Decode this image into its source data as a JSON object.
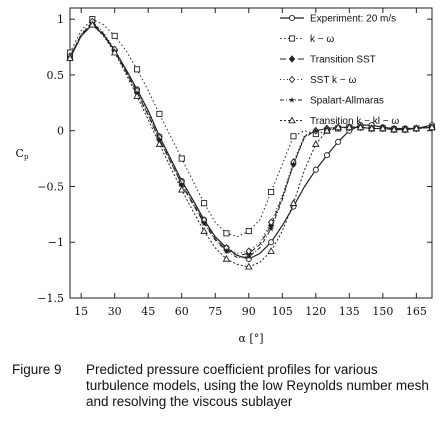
{
  "chart_data": {
    "type": "line",
    "xlabel": "α [°]",
    "ylabel": "Cp",
    "xlim": [
      10,
      172
    ],
    "ylim": [
      -1.5,
      1.1
    ],
    "x_ticks": [
      "15",
      "30",
      "45",
      "60",
      "75",
      "90",
      "105",
      "120",
      "135",
      "150",
      "165"
    ],
    "y_ticks": [
      "1",
      "0.5",
      "0",
      "−0.5",
      "−1",
      "−1.5"
    ],
    "grid": false,
    "legend_position": "top-right",
    "series": [
      {
        "name": "Experiment: 20 m/s",
        "marker": "circle",
        "x": [
          10,
          15,
          20,
          25,
          30,
          35,
          40,
          45,
          50,
          55,
          60,
          65,
          70,
          75,
          80,
          85,
          90,
          95,
          100,
          105,
          110,
          115,
          120,
          125,
          130,
          135,
          140,
          145,
          150,
          155,
          160,
          165,
          172
        ],
        "y": [
          0.65,
          0.85,
          0.95,
          0.86,
          0.72,
          0.55,
          0.37,
          0.18,
          -0.05,
          -0.25,
          -0.45,
          -0.62,
          -0.8,
          -0.95,
          -1.05,
          -1.12,
          -1.15,
          -1.1,
          -1.0,
          -0.85,
          -0.68,
          -0.5,
          -0.35,
          -0.22,
          -0.1,
          0.0,
          0.05,
          0.05,
          0.03,
          0.02,
          0.02,
          0.02,
          0.05
        ]
      },
      {
        "name": "k − ω",
        "marker": "square",
        "x": [
          10,
          15,
          20,
          25,
          30,
          35,
          40,
          45,
          50,
          55,
          60,
          65,
          70,
          75,
          80,
          85,
          90,
          95,
          100,
          105,
          110,
          115,
          120,
          125,
          130,
          135,
          140,
          145,
          150,
          155,
          160,
          165,
          172
        ],
        "y": [
          0.7,
          0.9,
          1.0,
          0.95,
          0.85,
          0.72,
          0.55,
          0.36,
          0.15,
          -0.05,
          -0.25,
          -0.45,
          -0.65,
          -0.82,
          -0.92,
          -0.95,
          -0.9,
          -0.8,
          -0.55,
          -0.3,
          -0.05,
          0.0,
          -0.03,
          0.0,
          0.02,
          0.03,
          0.03,
          0.02,
          0.02,
          0.01,
          0.01,
          0.02,
          0.03
        ]
      },
      {
        "name": "Transition SST",
        "marker": "diamond",
        "x": [
          10,
          15,
          20,
          25,
          30,
          35,
          40,
          45,
          50,
          55,
          60,
          65,
          70,
          75,
          80,
          85,
          90,
          95,
          100,
          105,
          110,
          115,
          120,
          125,
          130,
          135,
          140,
          145,
          150,
          155,
          160,
          165,
          172
        ],
        "y": [
          0.66,
          0.86,
          0.97,
          0.87,
          0.72,
          0.53,
          0.34,
          0.14,
          -0.08,
          -0.28,
          -0.48,
          -0.65,
          -0.82,
          -0.97,
          -1.07,
          -1.12,
          -1.1,
          -1.02,
          -0.85,
          -0.6,
          -0.3,
          -0.05,
          0.0,
          0.02,
          0.03,
          0.03,
          0.03,
          0.02,
          0.02,
          0.01,
          0.01,
          0.02,
          0.03
        ]
      },
      {
        "name": "SST k − ω",
        "marker": "open-diamond",
        "x": [
          10,
          15,
          20,
          25,
          30,
          35,
          40,
          45,
          50,
          55,
          60,
          65,
          70,
          75,
          80,
          85,
          90,
          95,
          100,
          105,
          110,
          115,
          120,
          125,
          130,
          135,
          140,
          145,
          150,
          155,
          160,
          165,
          172
        ],
        "y": [
          0.67,
          0.87,
          0.98,
          0.88,
          0.73,
          0.55,
          0.36,
          0.16,
          -0.06,
          -0.26,
          -0.46,
          -0.63,
          -0.8,
          -0.95,
          -1.05,
          -1.1,
          -1.08,
          -1.0,
          -0.82,
          -0.58,
          -0.28,
          -0.04,
          0.0,
          0.02,
          0.03,
          0.03,
          0.03,
          0.02,
          0.02,
          0.01,
          0.01,
          0.02,
          0.03
        ]
      },
      {
        "name": "Spalart-Allmaras",
        "marker": "star",
        "x": [
          10,
          15,
          20,
          25,
          30,
          35,
          40,
          45,
          50,
          55,
          60,
          65,
          70,
          75,
          80,
          85,
          90,
          95,
          100,
          105,
          110,
          115,
          120,
          125,
          130,
          135,
          140,
          145,
          150,
          155,
          160,
          165,
          172
        ],
        "y": [
          0.66,
          0.86,
          0.96,
          0.86,
          0.71,
          0.53,
          0.34,
          0.14,
          -0.08,
          -0.28,
          -0.48,
          -0.66,
          -0.83,
          -0.98,
          -1.08,
          -1.14,
          -1.13,
          -1.05,
          -0.88,
          -0.62,
          -0.3,
          -0.06,
          0.0,
          0.02,
          0.03,
          0.03,
          0.03,
          0.02,
          0.02,
          0.01,
          0.01,
          0.02,
          0.03
        ]
      },
      {
        "name": "Transition k − kl − ω",
        "marker": "triangle",
        "x": [
          10,
          15,
          20,
          25,
          30,
          35,
          40,
          45,
          50,
          55,
          60,
          65,
          70,
          75,
          80,
          85,
          90,
          95,
          100,
          105,
          110,
          115,
          120,
          125,
          130,
          135,
          140,
          145,
          150,
          155,
          160,
          165,
          172
        ],
        "y": [
          0.65,
          0.85,
          0.95,
          0.85,
          0.7,
          0.51,
          0.31,
          0.1,
          -0.12,
          -0.33,
          -0.53,
          -0.72,
          -0.9,
          -1.05,
          -1.15,
          -1.2,
          -1.22,
          -1.18,
          -1.08,
          -0.9,
          -0.65,
          -0.35,
          -0.12,
          0.0,
          0.03,
          0.03,
          0.03,
          0.02,
          0.02,
          0.01,
          0.01,
          0.02,
          0.03
        ]
      }
    ]
  },
  "caption": {
    "number": "Figure 9",
    "text": "Predicted pressure coefficient profiles for various turbulence models, using the low Reynolds number mesh and resolving the viscous sublayer"
  }
}
